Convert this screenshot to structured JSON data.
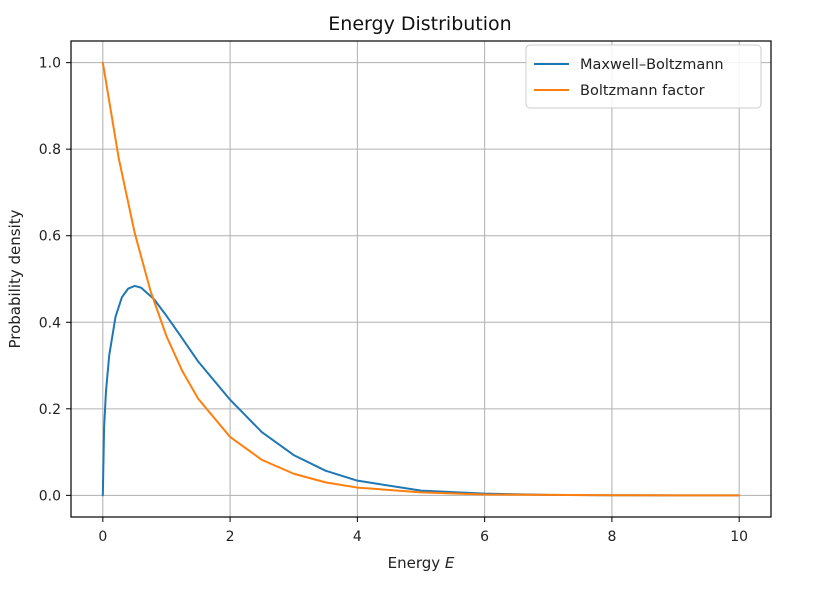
{
  "chart_data": {
    "type": "line",
    "title": "Energy Distribution",
    "xlabel": "Energy E",
    "xlabel_prefix": "Energy ",
    "xlabel_var": "E",
    "ylabel": "Probability density",
    "xlim": [
      -0.5,
      10.5
    ],
    "ylim": [
      -0.05,
      1.05
    ],
    "xticks": [
      0,
      2,
      4,
      6,
      8,
      10
    ],
    "yticks": [
      0.0,
      0.2,
      0.4,
      0.6,
      0.8,
      1.0
    ],
    "xtick_labels": [
      "0",
      "2",
      "4",
      "6",
      "8",
      "10"
    ],
    "ytick_labels": [
      "0.0",
      "0.2",
      "0.4",
      "0.6",
      "0.8",
      "1.0"
    ],
    "grid": true,
    "legend_position": "top-right",
    "series": [
      {
        "name": "Maxwell–Boltzmann",
        "color": "#1f77b4",
        "x": [
          0,
          0.02,
          0.05,
          0.1,
          0.2,
          0.3,
          0.4,
          0.5,
          0.6,
          0.8,
          1.0,
          1.2,
          1.5,
          2.0,
          2.5,
          3.0,
          3.5,
          4.0,
          5.0,
          6.0,
          7.0,
          8.0,
          9.0,
          10.0
        ],
        "values": [
          0,
          0.157,
          0.241,
          0.323,
          0.413,
          0.458,
          0.478,
          0.484,
          0.48,
          0.454,
          0.415,
          0.373,
          0.309,
          0.221,
          0.146,
          0.093,
          0.057,
          0.034,
          0.011,
          0.004,
          0.001,
          0.0004,
          0.0001,
          0.0
        ]
      },
      {
        "name": "Boltzmann factor",
        "color": "#ff7f0e",
        "x": [
          0,
          0.25,
          0.5,
          0.75,
          1.0,
          1.25,
          1.5,
          2.0,
          2.5,
          3.0,
          3.5,
          4.0,
          5.0,
          6.0,
          7.0,
          8.0,
          9.0,
          10.0
        ],
        "values": [
          1.0,
          0.779,
          0.607,
          0.472,
          0.368,
          0.287,
          0.223,
          0.135,
          0.082,
          0.05,
          0.03,
          0.018,
          0.007,
          0.002,
          0.001,
          0.0003,
          0.0001,
          0.0
        ]
      }
    ]
  }
}
